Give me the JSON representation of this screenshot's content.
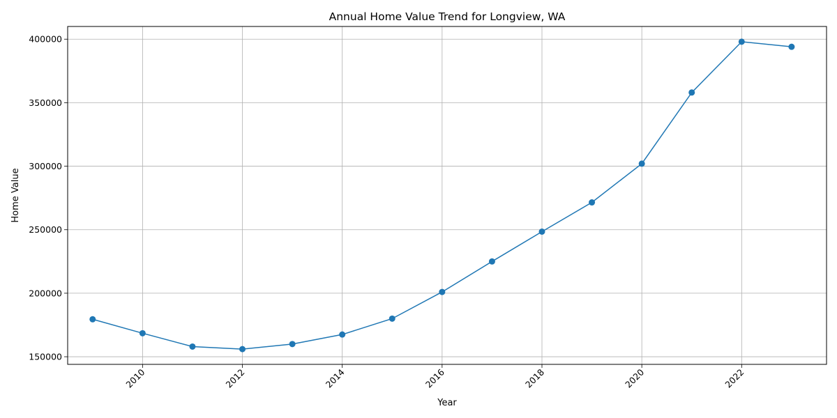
{
  "chart_data": {
    "type": "line",
    "title": "Annual Home Value Trend for Longview, WA",
    "xlabel": "Year",
    "ylabel": "Home Value",
    "xlim": [
      2008.5,
      2023.7
    ],
    "ylim": [
      144000,
      410000
    ],
    "x_ticks": [
      2010,
      2012,
      2014,
      2016,
      2018,
      2020,
      2022
    ],
    "y_ticks": [
      150000,
      200000,
      250000,
      300000,
      350000,
      400000
    ],
    "grid": true,
    "line_color": "#1f77b4",
    "series": [
      {
        "x": [
          2009,
          2010,
          2011,
          2012,
          2013,
          2014,
          2015,
          2016,
          2017,
          2018,
          2019,
          2020,
          2021,
          2022,
          2023
        ],
        "y": [
          179500,
          168500,
          158000,
          156000,
          160000,
          167500,
          180000,
          201000,
          225000,
          248500,
          271500,
          302000,
          358000,
          398000,
          394000
        ]
      }
    ]
  }
}
